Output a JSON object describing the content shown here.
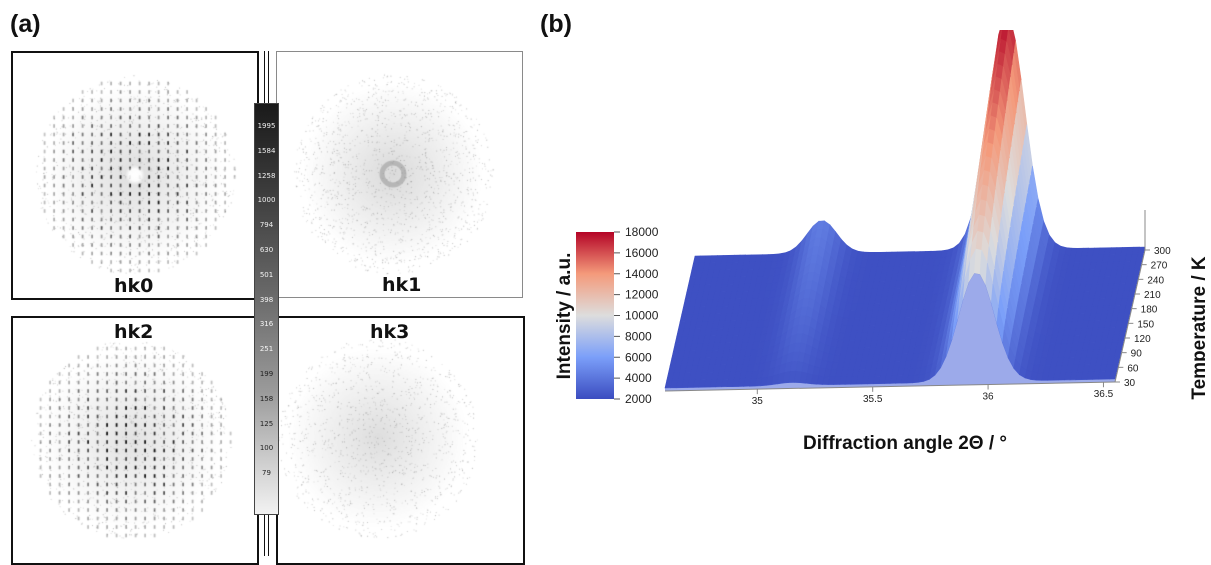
{
  "panel_a": {
    "label": "(a)",
    "planes": [
      "hk0",
      "hk1",
      "hk2",
      "hk3"
    ],
    "colorbar_ticks": [
      "1995",
      "1584",
      "1258",
      "1000",
      "794",
      "630",
      "501",
      "398",
      "316",
      "251",
      "199",
      "158",
      "125",
      "100",
      "79"
    ]
  },
  "panel_b": {
    "label": "(b)",
    "chart_data": {
      "type": "surface",
      "xlabel": "Diffraction angle 2Θ / °",
      "ylabel": "Temperature / K",
      "zlabel": "Intensity / a.u.",
      "x_ticks": [
        "35",
        "35.5",
        "36",
        "36.5"
      ],
      "y_ticks": [
        "30",
        "60",
        "90",
        "120",
        "150",
        "180",
        "210",
        "240",
        "270",
        "300"
      ],
      "colorbar_ticks": [
        "18000",
        "16000",
        "14000",
        "12000",
        "10000",
        "8000",
        "6000",
        "4000",
        "2000"
      ],
      "xlim": [
        34.6,
        36.55
      ],
      "ylim": [
        30,
        300
      ],
      "zlim": [
        2000,
        18000
      ],
      "colormap": "coolwarm",
      "colors": {
        "low": "#3b4cc0",
        "mid": "#dddddd",
        "high": "#b40426"
      },
      "peaks": [
        {
          "position": 35.15,
          "height_at_30K": 2400,
          "height_at_300K": 4400
        },
        {
          "position": 35.95,
          "height_at_30K": 9500,
          "height_at_300K": 18000
        }
      ],
      "baseline": 2200
    }
  }
}
